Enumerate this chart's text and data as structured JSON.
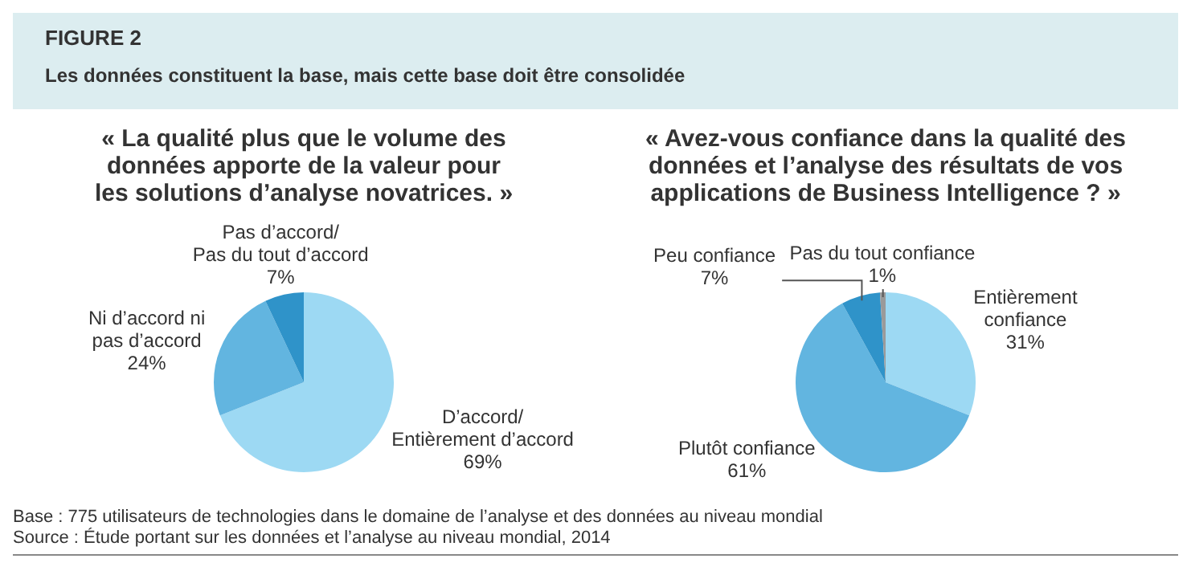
{
  "chart_data": [
    {
      "type": "other",
      "title": "FIGURE 2",
      "subtitle": "Les données constituent la base, mais cette base doit être consolidée",
      "annotations": [
        "Base : 775 utilisateurs de technologies dans le domaine de l’analyse et des données au niveau mondial",
        "Source : Étude portant sur les données et l’analyse au niveau mondial, 2014"
      ]
    },
    {
      "type": "pie",
      "title": "« La qualité plus que le volume des\ndonnées apporte de la valeur pour\nles solutions d’analyse novatrices. »",
      "categories": [
        "D’accord/\nEntièrement d’accord",
        "Ni d’accord ni\npas d’accord",
        "Pas d’accord/\nPas du tout d’accord"
      ],
      "values": [
        69,
        24,
        7
      ],
      "value_labels": [
        "69%",
        "24%",
        "7%"
      ],
      "colors": [
        "#9dd9f3",
        "#62b5e0",
        "#2f93c9"
      ]
    },
    {
      "type": "pie",
      "title": "« Avez-vous confiance dans la qualité des\ndonnées et l’analyse des résultats de vos\napplications de Business Intelligence ? »",
      "categories": [
        "Entièrement\nconfiance",
        "Plutôt confiance",
        "Peu confiance",
        "Pas du tout confiance"
      ],
      "values": [
        31,
        61,
        7,
        1
      ],
      "value_labels": [
        "31%",
        "61%",
        "7%",
        "1%"
      ],
      "colors": [
        "#9dd9f3",
        "#62b5e0",
        "#2f93c9",
        "#9a9a9a"
      ]
    }
  ]
}
